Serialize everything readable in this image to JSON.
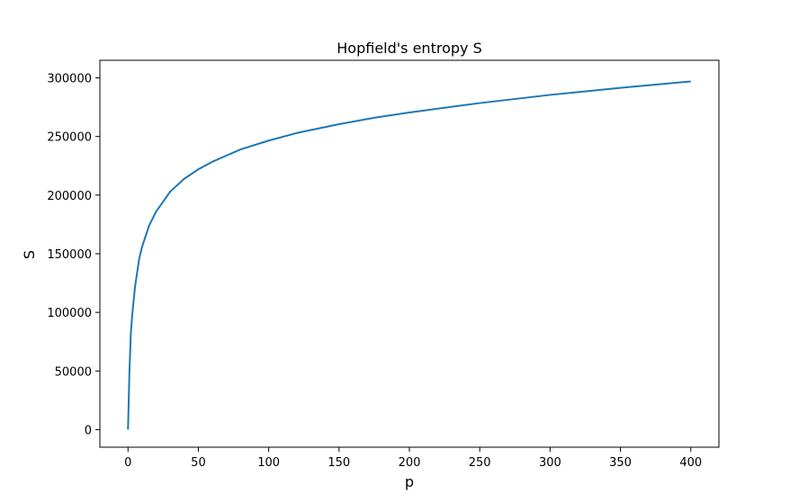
{
  "chart_data": {
    "type": "line",
    "title": "Hopfield's entropy S",
    "xlabel": "p",
    "ylabel": "S",
    "xlim": [
      -20,
      420
    ],
    "ylim": [
      -15000,
      315000
    ],
    "xticks": [
      0,
      50,
      100,
      150,
      200,
      250,
      300,
      350,
      400
    ],
    "yticks": [
      0,
      50000,
      100000,
      150000,
      200000,
      250000,
      300000
    ],
    "grid": false,
    "line_color": "#1f77b4",
    "series": [
      {
        "x": [
          0,
          1,
          2,
          3,
          5,
          8,
          10,
          15,
          20,
          30,
          40,
          50,
          60,
          80,
          100,
          120,
          150,
          175,
          200,
          250,
          300,
          350,
          400
        ],
        "y": [
          0,
          49000,
          82000,
          98000,
          122000,
          146000,
          156000,
          174000,
          186000,
          203000,
          214000,
          222000,
          228500,
          239000,
          246500,
          253000,
          260500,
          266000,
          270500,
          278500,
          285500,
          291500,
          297000
        ]
      }
    ]
  }
}
